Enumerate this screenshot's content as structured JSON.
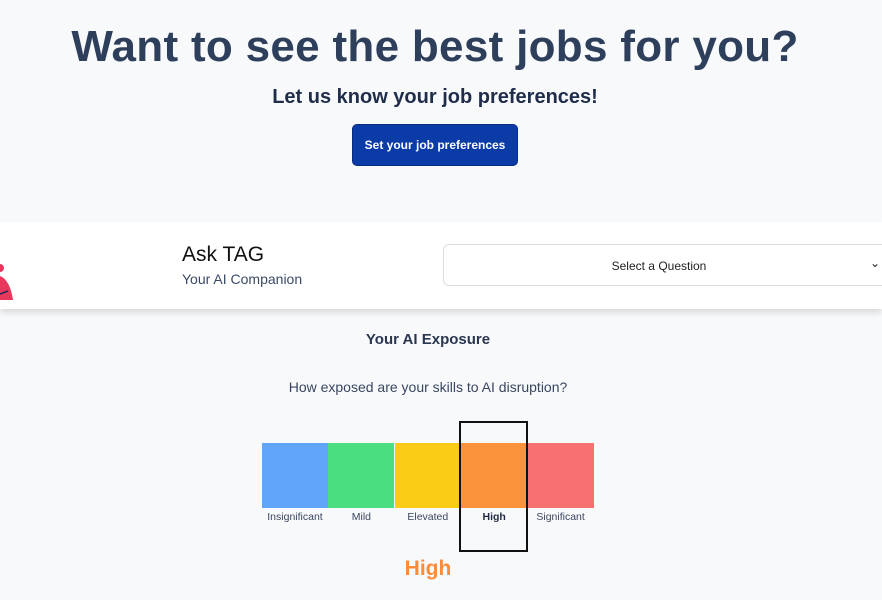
{
  "hero": {
    "title": "Want to see the best jobs for you?",
    "subtitle": "Let us know your job preferences!",
    "button": "Set your job preferences"
  },
  "assistant": {
    "name": "Ask TAG",
    "tagline": "Your AI Companion",
    "select_value": "Select a Question",
    "chevron_icon": "chevron-down-icon"
  },
  "exposure": {
    "heading": "Your AI Exposure",
    "question": "How exposed are your skills to AI disruption?",
    "levels": [
      {
        "label": "Insignificant",
        "color": "#60a5fa"
      },
      {
        "label": "Mild",
        "color": "#4ade80"
      },
      {
        "label": "Elevated",
        "color": "#facc15"
      },
      {
        "label": "High",
        "color": "#fb923c"
      },
      {
        "label": "Significant",
        "color": "#f87171"
      }
    ],
    "selected_index": 3,
    "result": "High",
    "result_color": "#fb8c3c"
  }
}
